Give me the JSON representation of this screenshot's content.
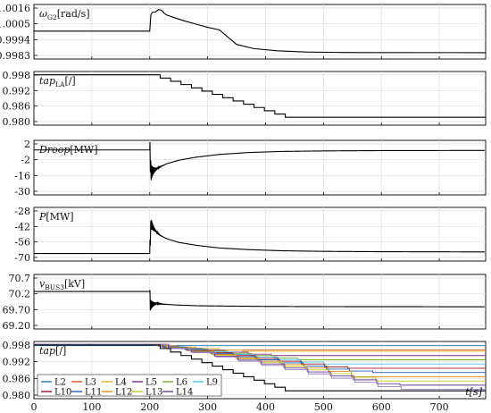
{
  "chart_data": [
    {
      "type": "line",
      "ylabel_main": "ω",
      "ylabel_sub": "G2",
      "ylabel_unit": "[rad/s]",
      "yticks": [
        "1.0016",
        "1.0005",
        "0.9994",
        "0.9983"
      ],
      "ylim": [
        0.9978,
        1.0021
      ],
      "xlim": [
        0,
        780
      ],
      "series": [
        {
          "color": "#000000",
          "x": [
            0,
            200,
            202,
            205,
            210,
            215,
            220,
            225,
            230,
            240,
            260,
            280,
            300,
            320,
            350,
            380,
            420,
            470,
            520,
            560,
            780
          ],
          "y": [
            1.0,
            1.0,
            1.0013,
            1.0015,
            1.0015,
            1.0017,
            1.00165,
            1.0014,
            1.00125,
            1.0011,
            1.0008,
            1.00055,
            1.0003,
            1.0001,
            0.99895,
            0.99862,
            0.99845,
            0.99835,
            0.99832,
            0.99831,
            0.9983
          ]
        }
      ]
    },
    {
      "type": "line",
      "ylabel_main": "tap",
      "ylabel_sub": "LA",
      "ylabel_unit": "[/]",
      "yticks": [
        "0.998",
        "0.992",
        "0.986",
        "0.980"
      ],
      "ylim": [
        0.9795,
        1.0
      ],
      "xlim": [
        0,
        780
      ],
      "series": [
        {
          "color": "#000000",
          "step": true,
          "x": [
            0,
            200,
            218,
            236,
            254,
            272,
            290,
            308,
            326,
            344,
            362,
            380,
            398,
            416,
            434,
            780
          ],
          "y": [
            0.99875,
            0.99875,
            0.9975,
            0.99625,
            0.995,
            0.99375,
            0.9925,
            0.99125,
            0.99,
            0.98875,
            0.9875,
            0.98625,
            0.985,
            0.98375,
            0.9825,
            0.9825
          ]
        }
      ]
    },
    {
      "type": "line",
      "ylabel_main": "Droop",
      "ylabel_sub": "",
      "ylabel_unit": "[MW]",
      "yticks": [
        "2",
        "-2",
        "-16",
        "-30"
      ],
      "ylim": [
        -30,
        4
      ],
      "xlim": [
        0,
        780
      ],
      "oscillation": {
        "t0": 200,
        "amplitude": 8,
        "decay": 5,
        "period": 1.4
      },
      "series": [
        {
          "color": "#000000",
          "x": [
            0,
            200,
            202,
            208,
            218,
            230,
            250,
            280,
            320,
            370,
            430,
            500,
            600,
            780
          ],
          "y": [
            -2,
            -2,
            -16,
            -14.5,
            -12.5,
            -10.5,
            -8.4,
            -6.5,
            -4.8,
            -3.6,
            -2.9,
            -2.6,
            -2.4,
            -2.3
          ]
        }
      ]
    },
    {
      "type": "line",
      "ylabel_main": "P",
      "ylabel_sub": "",
      "ylabel_unit": "[MW]",
      "yticks": [
        "-28",
        "-42",
        "-56",
        "-70"
      ],
      "ylim": [
        -74,
        -28
      ],
      "xlim": [
        0,
        780
      ],
      "oscillation": {
        "t0": 200,
        "amplitude": 8,
        "decay": 5,
        "period": 1.4
      },
      "series": [
        {
          "color": "#000000",
          "x": [
            0,
            200,
            202,
            208,
            218,
            230,
            250,
            280,
            320,
            370,
            430,
            500,
            600,
            780
          ],
          "y": [
            -67.5,
            -67.5,
            -42,
            -47,
            -52,
            -55,
            -58,
            -60.5,
            -62.8,
            -64.2,
            -65.2,
            -65.7,
            -66,
            -66.2
          ]
        }
      ]
    },
    {
      "type": "line",
      "ylabel_main": "v",
      "ylabel_sub": "BUS3",
      "ylabel_unit": "[kV]",
      "yticks": [
        "70.7",
        "70.2",
        "69.70",
        "69.20"
      ],
      "ylim": [
        69.2,
        70.7
      ],
      "xlim": [
        0,
        780
      ],
      "oscillation": {
        "t0": 200,
        "amplitude": 0.18,
        "decay": 6,
        "period": 1.4
      },
      "series": [
        {
          "color": "#000000",
          "x": [
            0,
            200,
            201,
            205,
            212,
            225,
            245,
            280,
            330,
            400,
            500,
            780
          ],
          "y": [
            70.23,
            70.23,
            69.86,
            69.88,
            69.9,
            69.88,
            69.86,
            69.84,
            69.83,
            69.82,
            69.815,
            69.81
          ]
        }
      ]
    },
    {
      "type": "line",
      "ylabel_main": "tap",
      "ylabel_sub": "",
      "ylabel_unit": "[/]",
      "yticks": [
        "0.998",
        "0.992",
        "0.986",
        "0.980"
      ],
      "ylim": [
        0.9797,
        1.0
      ],
      "xlim": [
        0,
        780
      ],
      "xticks": [
        "0",
        "100",
        "200",
        "300",
        "400",
        "500",
        "600",
        "700"
      ],
      "xtick_values": [
        0,
        100,
        200,
        300,
        400,
        500,
        600,
        700
      ],
      "xlabel": "t[s]",
      "legend": {
        "placement": "bottom-left",
        "rows": [
          [
            {
              "label": "L2",
              "color": "#1f77b4"
            },
            {
              "label": "L3",
              "color": "#d95319"
            },
            {
              "label": "L4",
              "color": "#edb120"
            },
            {
              "label": "L5",
              "color": "#7e2f8e"
            },
            {
              "label": "L6",
              "color": "#77ac30"
            },
            {
              "label": "L9",
              "color": "#4dbeee"
            }
          ],
          [
            {
              "label": "L10",
              "color": "#a2142f"
            },
            {
              "label": "L11",
              "color": "#1f5fb4"
            },
            {
              "label": "L12",
              "color": "#d98a19"
            },
            {
              "label": "L13",
              "color": "#c8c820"
            },
            {
              "label": "L14",
              "color": "#6b3fa0"
            }
          ]
        ]
      },
      "series": [
        {
          "name": "L2",
          "color": "#1f77b4",
          "step": true,
          "x": [
            0,
            780
          ],
          "y": [
            0.9985,
            0.9985
          ]
        },
        {
          "name": "L3",
          "color": "#d95319",
          "step": true,
          "x": [
            0,
            210,
            240,
            270,
            300,
            780
          ],
          "y": [
            0.999,
            0.9985,
            0.998,
            0.9975,
            0.997,
            0.997
          ]
        },
        {
          "name": "L4",
          "color": "#edb120",
          "step": true,
          "x": [
            0,
            212,
            245,
            280,
            320,
            360,
            780
          ],
          "y": [
            0.999,
            0.9985,
            0.998,
            0.9975,
            0.997,
            0.9965,
            0.9965
          ]
        },
        {
          "name": "L5",
          "color": "#7e2f8e",
          "step": true,
          "x": [
            0,
            215,
            250,
            290,
            330,
            370,
            410,
            780
          ],
          "y": [
            0.999,
            0.9983,
            0.9976,
            0.9969,
            0.9962,
            0.9955,
            0.995,
            0.995
          ]
        },
        {
          "name": "L6",
          "color": "#77ac30",
          "step": true,
          "x": [
            0,
            218,
            255,
            295,
            335,
            375,
            415,
            455,
            780
          ],
          "y": [
            0.999,
            0.9982,
            0.9974,
            0.9966,
            0.9958,
            0.995,
            0.9942,
            0.9935,
            0.9935
          ]
        },
        {
          "name": "L9",
          "color": "#4dbeee",
          "step": true,
          "x": [
            0,
            220,
            260,
            300,
            340,
            380,
            420,
            460,
            500,
            780
          ],
          "y": [
            0.999,
            0.9981,
            0.9972,
            0.9963,
            0.9954,
            0.9945,
            0.9936,
            0.9927,
            0.992,
            0.992
          ]
        },
        {
          "name": "L10",
          "color": "#a2142f",
          "step": true,
          "x": [
            0,
            222,
            262,
            302,
            342,
            382,
            422,
            462,
            502,
            542,
            780
          ],
          "y": [
            0.999,
            0.998,
            0.997,
            0.996,
            0.995,
            0.994,
            0.993,
            0.992,
            0.991,
            0.9905,
            0.9905
          ]
        },
        {
          "name": "L11",
          "color": "#1f5fb4",
          "step": true,
          "x": [
            0,
            225,
            265,
            305,
            345,
            385,
            425,
            465,
            505,
            545,
            585,
            780
          ],
          "y": [
            0.999,
            0.9979,
            0.9968,
            0.9957,
            0.9946,
            0.9935,
            0.9924,
            0.9913,
            0.9902,
            0.9895,
            0.989,
            0.989
          ]
        },
        {
          "name": "L12",
          "color": "#d98a19",
          "step": true,
          "x": [
            0,
            228,
            268,
            308,
            348,
            388,
            428,
            468,
            508,
            548,
            780
          ],
          "y": [
            0.999,
            0.9978,
            0.9966,
            0.9954,
            0.9942,
            0.993,
            0.9918,
            0.9906,
            0.9894,
            0.9875,
            0.9875
          ]
        },
        {
          "name": "L13",
          "color": "#c8c820",
          "step": true,
          "x": [
            0,
            230,
            270,
            310,
            350,
            390,
            430,
            470,
            510,
            550,
            590,
            780
          ],
          "y": [
            0.999,
            0.9977,
            0.9964,
            0.9951,
            0.9938,
            0.9925,
            0.9912,
            0.9899,
            0.9886,
            0.9873,
            0.986,
            0.986
          ]
        },
        {
          "name": "L14",
          "color": "#6b3fa0",
          "step": true,
          "x": [
            0,
            232,
            272,
            312,
            352,
            392,
            432,
            472,
            512,
            552,
            592,
            632,
            780
          ],
          "y": [
            0.999,
            0.9976,
            0.9962,
            0.9948,
            0.9934,
            0.992,
            0.9906,
            0.9892,
            0.9878,
            0.9864,
            0.985,
            0.9845,
            0.9845
          ]
        },
        {
          "name": "",
          "color": "#9a7fc8",
          "step": true,
          "x": [
            0,
            234,
            274,
            314,
            354,
            394,
            434,
            474,
            514,
            554,
            594,
            634,
            780
          ],
          "y": [
            0.999,
            0.9975,
            0.996,
            0.9945,
            0.993,
            0.9915,
            0.99,
            0.9885,
            0.987,
            0.9855,
            0.984,
            0.983,
            0.983
          ]
        },
        {
          "name": "",
          "color": "#000000",
          "step": true,
          "x": [
            0,
            200,
            218,
            236,
            254,
            272,
            290,
            308,
            326,
            344,
            362,
            380,
            398,
            416,
            434,
            780
          ],
          "y": [
            0.99875,
            0.99875,
            0.9975,
            0.99625,
            0.995,
            0.99375,
            0.9925,
            0.99125,
            0.99,
            0.98875,
            0.9875,
            0.98625,
            0.985,
            0.98375,
            0.9825,
            0.9825
          ]
        }
      ]
    }
  ]
}
